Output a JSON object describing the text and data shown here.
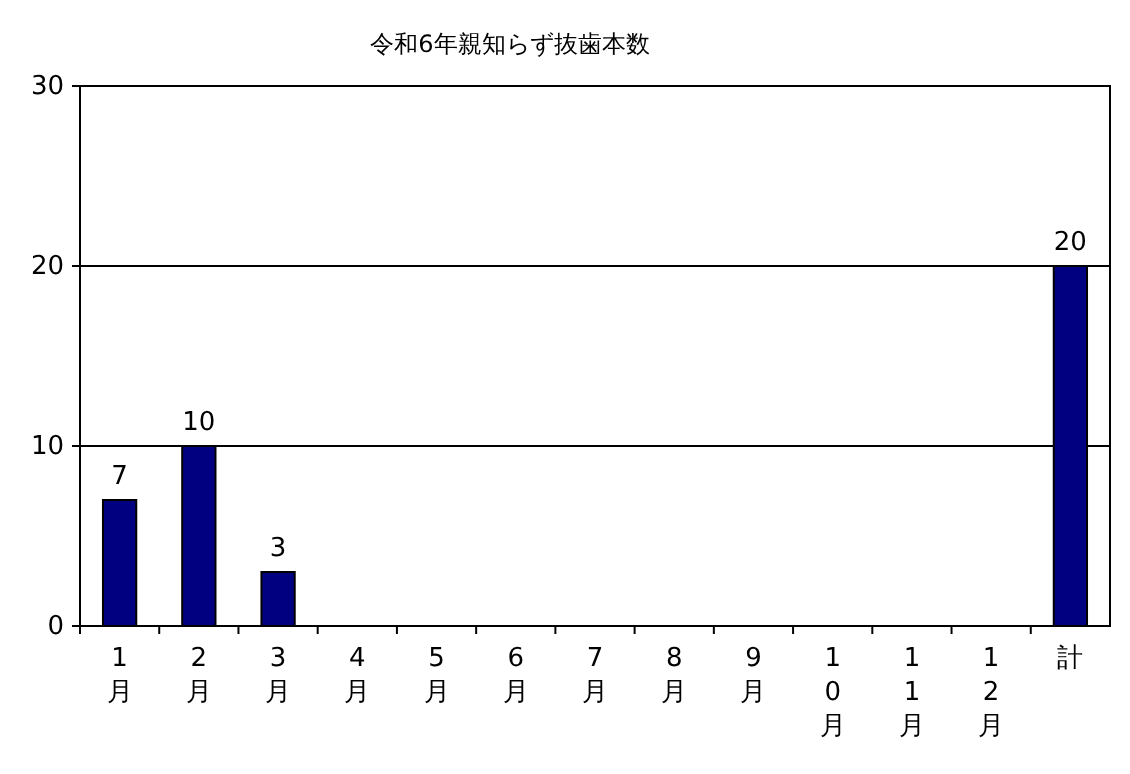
{
  "chart_data": {
    "type": "bar",
    "title": "令和6年親知らず抜歯本数",
    "categories": [
      "1月",
      "2月",
      "3月",
      "4月",
      "5月",
      "6月",
      "7月",
      "8月",
      "9月",
      "10月",
      "11月",
      "12月",
      "計"
    ],
    "values": [
      7,
      10,
      3,
      0,
      0,
      0,
      0,
      0,
      0,
      0,
      0,
      0,
      20
    ],
    "value_labels": [
      "7",
      "10",
      "3",
      null,
      null,
      null,
      null,
      null,
      null,
      null,
      null,
      null,
      "20"
    ],
    "color": "#000080",
    "ylim": [
      0,
      30
    ],
    "yticks": [
      0,
      10,
      20,
      30
    ],
    "grid": "y"
  }
}
